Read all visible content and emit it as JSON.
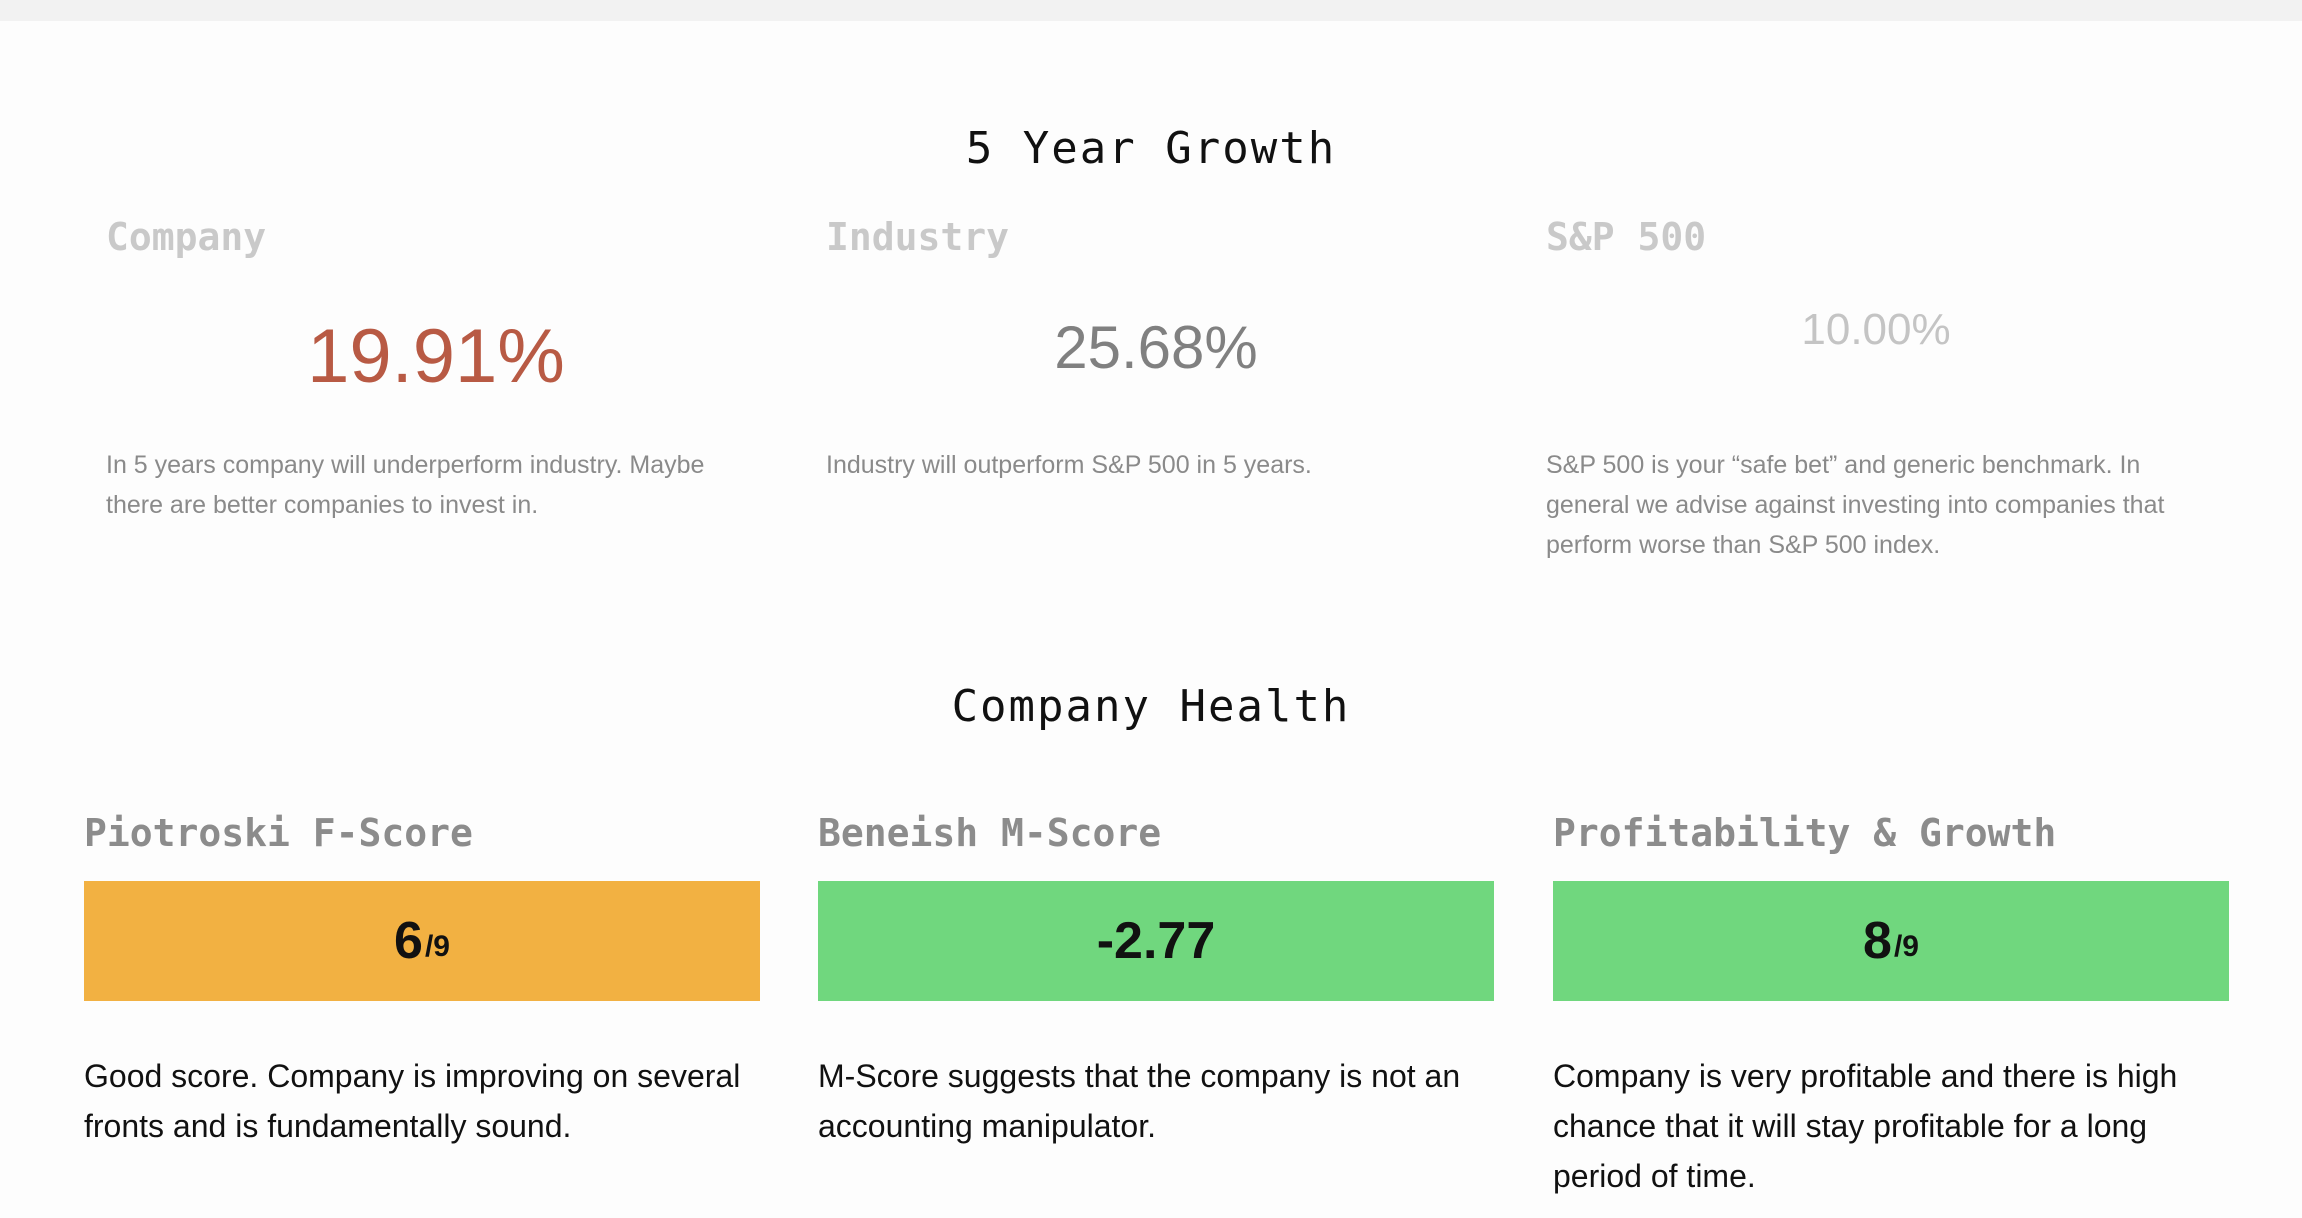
{
  "growth": {
    "title": "5 Year Growth",
    "columns": [
      {
        "label": "Company",
        "value": "19.91%",
        "description": "In 5 years company will underperform industry. Maybe there are better companies to invest in."
      },
      {
        "label": "Industry",
        "value": "25.68%",
        "description": "Industry will outperform S&P 500 in 5 years."
      },
      {
        "label": "S&P 500",
        "value": "10.00%",
        "description": "S&P 500 is your “safe bet” and generic benchmark. In general we advise against investing into companies that perform worse than S&P 500 index."
      }
    ]
  },
  "health": {
    "title": "Company Health",
    "cards": [
      {
        "label": "Piotroski F-Score",
        "score": "6",
        "score_suffix": "/9",
        "bar_color": "#f2b142",
        "description": "Good score. Company is improving on several fronts and is fundamentally sound."
      },
      {
        "label": "Beneish M-Score",
        "score": "-2.77",
        "score_suffix": "",
        "bar_color": "#70d77e",
        "description": "M-Score suggests that the company is not an accounting manipulator."
      },
      {
        "label": "Profitability & Growth",
        "score": "8",
        "score_suffix": "/9",
        "bar_color": "#70d77e",
        "description": "Company is very profitable and there is high chance that it will stay profitable for a long period of time."
      }
    ]
  },
  "colors": {
    "company_value": "#b85a44",
    "industry_value": "#808080",
    "sp500_value": "#c4c4c4"
  }
}
